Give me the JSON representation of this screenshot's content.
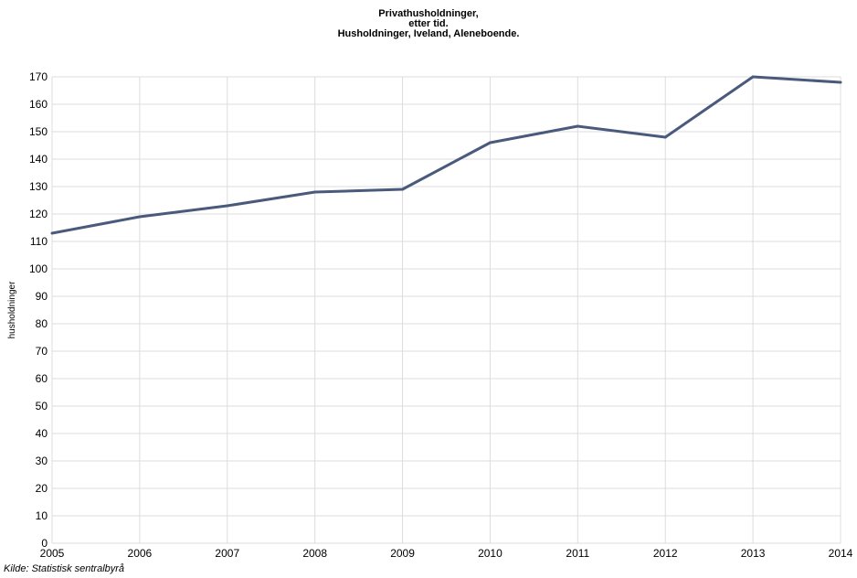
{
  "chart_data": {
    "type": "line",
    "title_lines": [
      "Privathusholdninger,",
      "etter tid.",
      "Husholdninger, Iveland, Aleneboende."
    ],
    "ylabel": "husholdninger",
    "xlabel": "",
    "x": [
      "2005",
      "2006",
      "2007",
      "2008",
      "2009",
      "2010",
      "2011",
      "2012",
      "2013",
      "2014"
    ],
    "series": [
      {
        "values": [
          113,
          119,
          123,
          128,
          129,
          146,
          152,
          148,
          170,
          168
        ]
      }
    ],
    "ylim": [
      0,
      170
    ],
    "yticks": [
      0,
      10,
      20,
      30,
      40,
      50,
      60,
      70,
      80,
      90,
      100,
      110,
      120,
      130,
      140,
      150,
      160,
      170
    ],
    "grid": true,
    "line_color": "#4a5a7c",
    "grid_color": "#dcdcdc"
  },
  "source": "Kilde: Statistisk sentralbyrå"
}
